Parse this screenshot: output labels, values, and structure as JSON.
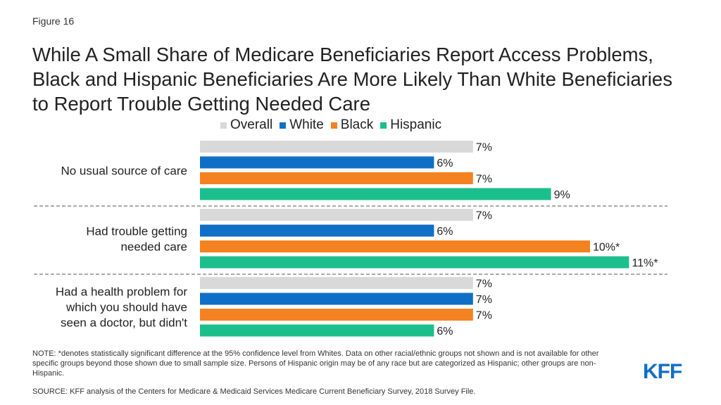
{
  "figure_label": "Figure 16",
  "title": "While A Small Share of Medicare Beneficiaries Report Access Problems, Black and Hispanic Beneficiaries Are More Likely Than White Beneficiaries to Report Trouble Getting Needed Care",
  "note": "NOTE: *denotes statistically significant difference at the 95% confidence level from Whites. Data on other racial/ethnic groups not shown and is not available for other specific groups beyond those shown due to small sample size. Persons of Hispanic origin may be of any race but are categorized as Hispanic; other groups are non-Hispanic.",
  "source": "SOURCE: KFF analysis of the Centers for Medicare & Medicaid Services Medicare Current Beneficiary Survey, 2018 Survey File.",
  "logo_text": "KFF",
  "chart_data": {
    "type": "bar",
    "orientation": "horizontal",
    "legend_position": "top",
    "grid": false,
    "categories": [
      "No usual source of care",
      "Had trouble getting needed care",
      "Had a health problem for which you should have seen a doctor, but didn't"
    ],
    "series": [
      {
        "name": "Overall",
        "color": "#d9d9d9",
        "values": [
          7,
          7,
          7
        ],
        "labels": [
          "7%",
          "7%",
          "7%"
        ]
      },
      {
        "name": "White",
        "color": "#0f6fc6",
        "values": [
          6,
          6,
          7
        ],
        "labels": [
          "6%",
          "6%",
          "7%"
        ]
      },
      {
        "name": "Black",
        "color": "#f58220",
        "values": [
          7,
          10,
          7
        ],
        "labels": [
          "7%",
          "10%*",
          "7%"
        ]
      },
      {
        "name": "Hispanic",
        "color": "#1cbe8c",
        "values": [
          9,
          11,
          6
        ],
        "labels": [
          "9%",
          "11%*",
          "6%"
        ]
      }
    ]
  }
}
